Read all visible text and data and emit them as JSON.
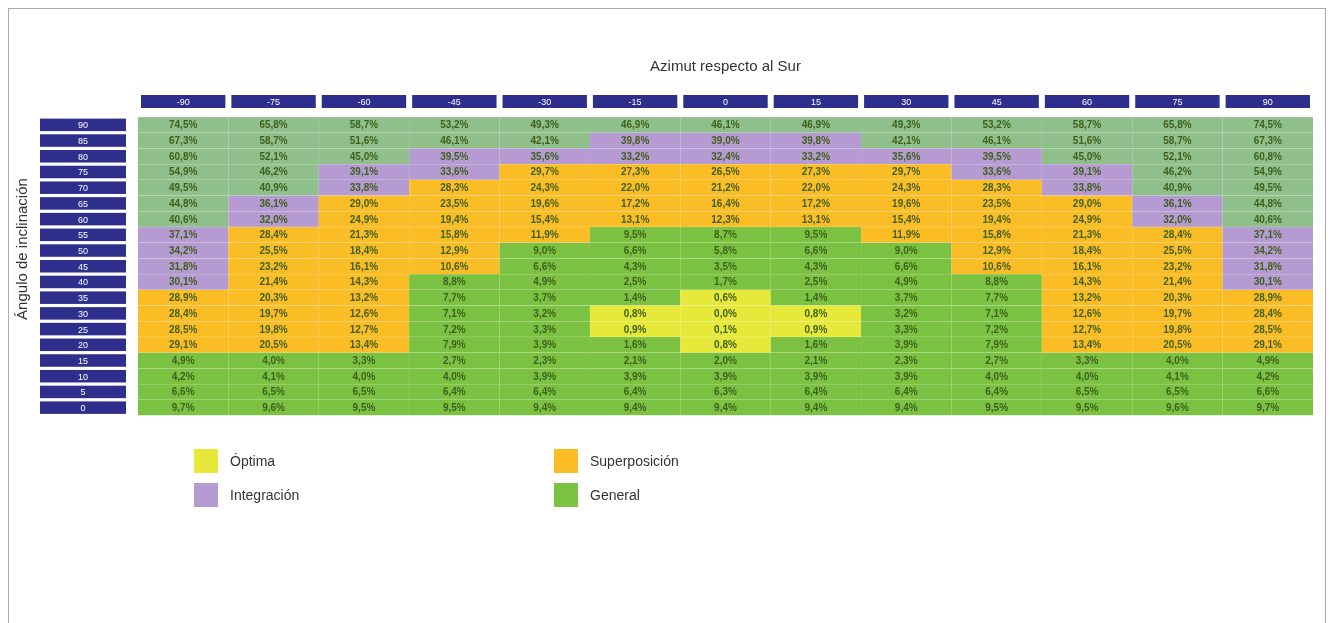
{
  "chart_data": {
    "type": "heatmap",
    "xlabel": "Azimut respecto al Sur",
    "ylabel": "Ángulo de inclinación",
    "categories": [
      "-90",
      "-75",
      "-60",
      "-45",
      "-30",
      "-15",
      "0",
      "15",
      "30",
      "45",
      "60",
      "75",
      "90"
    ],
    "y_categories": [
      "90",
      "85",
      "80",
      "75",
      "70",
      "65",
      "60",
      "55",
      "50",
      "45",
      "40",
      "35",
      "30",
      "25",
      "20",
      "15",
      "10",
      "5",
      "0"
    ],
    "cells": [
      [
        74.5,
        65.8,
        58.7,
        53.2,
        49.3,
        46.9,
        46.1,
        46.9,
        49.3,
        53.2,
        58.7,
        65.8,
        74.5
      ],
      [
        67.3,
        58.7,
        51.6,
        46.1,
        42.1,
        39.8,
        39.0,
        39.8,
        42.1,
        46.1,
        51.6,
        58.7,
        67.3
      ],
      [
        60.8,
        52.1,
        45.0,
        39.5,
        35.6,
        33.2,
        32.4,
        33.2,
        35.6,
        39.5,
        45.0,
        52.1,
        60.8
      ],
      [
        54.9,
        46.2,
        39.1,
        33.6,
        29.7,
        27.3,
        26.5,
        27.3,
        29.7,
        33.6,
        39.1,
        46.2,
        54.9
      ],
      [
        49.5,
        40.9,
        33.8,
        28.3,
        24.3,
        22.0,
        21.2,
        22.0,
        24.3,
        28.3,
        33.8,
        40.9,
        49.5
      ],
      [
        44.8,
        36.1,
        29.0,
        23.5,
        19.6,
        17.2,
        16.4,
        17.2,
        19.6,
        23.5,
        29.0,
        36.1,
        44.8
      ],
      [
        40.6,
        32.0,
        24.9,
        19.4,
        15.4,
        13.1,
        12.3,
        13.1,
        15.4,
        19.4,
        24.9,
        32.0,
        40.6
      ],
      [
        37.1,
        28.4,
        21.3,
        15.8,
        11.9,
        9.5,
        8.7,
        9.5,
        11.9,
        15.8,
        21.3,
        28.4,
        37.1
      ],
      [
        34.2,
        25.5,
        18.4,
        12.9,
        9.0,
        6.6,
        5.8,
        6.6,
        9.0,
        12.9,
        18.4,
        25.5,
        34.2
      ],
      [
        31.8,
        23.2,
        16.1,
        10.6,
        6.6,
        4.3,
        3.5,
        4.3,
        6.6,
        10.6,
        16.1,
        23.2,
        31.8
      ],
      [
        30.1,
        21.4,
        14.3,
        8.8,
        4.9,
        2.5,
        1.7,
        2.5,
        4.9,
        8.8,
        14.3,
        21.4,
        30.1
      ],
      [
        28.9,
        20.3,
        13.2,
        7.7,
        3.7,
        1.4,
        0.6,
        1.4,
        3.7,
        7.7,
        13.2,
        20.3,
        28.9
      ],
      [
        28.4,
        19.7,
        12.6,
        7.1,
        3.2,
        0.8,
        0.0,
        0.8,
        3.2,
        7.1,
        12.6,
        19.7,
        28.4
      ],
      [
        28.5,
        19.8,
        12.7,
        7.2,
        3.3,
        0.9,
        0.1,
        0.9,
        3.3,
        7.2,
        12.7,
        19.8,
        28.5
      ],
      [
        29.1,
        20.5,
        13.4,
        7.9,
        3.9,
        1.6,
        0.8,
        1.6,
        3.9,
        7.9,
        13.4,
        20.5,
        29.1
      ],
      [
        4.9,
        4.0,
        3.3,
        2.7,
        2.3,
        2.1,
        2.0,
        2.1,
        2.3,
        2.7,
        3.3,
        4.0,
        4.9
      ],
      [
        4.2,
        4.1,
        4.0,
        4.0,
        3.9,
        3.9,
        3.9,
        3.9,
        3.9,
        4.0,
        4.0,
        4.1,
        4.2
      ],
      [
        6.6,
        6.5,
        6.5,
        6.4,
        6.4,
        6.4,
        6.3,
        6.4,
        6.4,
        6.4,
        6.5,
        6.5,
        6.6
      ],
      [
        9.7,
        9.6,
        9.5,
        9.5,
        9.4,
        9.4,
        9.4,
        9.4,
        9.4,
        9.5,
        9.5,
        9.6,
        9.7
      ]
    ],
    "cell_labels": [
      [
        "74,5%",
        "65,8%",
        "58,7%",
        "53,2%",
        "49,3%",
        "46,9%",
        "46,1%",
        "46,9%",
        "49,3%",
        "53,2%",
        "58,7%",
        "65,8%",
        "74,5%"
      ],
      [
        "67,3%",
        "58,7%",
        "51,6%",
        "46,1%",
        "42,1%",
        "39,8%",
        "39,0%",
        "39,8%",
        "42,1%",
        "46,1%",
        "51,6%",
        "58,7%",
        "67,3%"
      ],
      [
        "60,8%",
        "52,1%",
        "45,0%",
        "39,5%",
        "35,6%",
        "33,2%",
        "32,4%",
        "33,2%",
        "35,6%",
        "39,5%",
        "45,0%",
        "52,1%",
        "60,8%"
      ],
      [
        "54,9%",
        "46,2%",
        "39,1%",
        "33,6%",
        "29,7%",
        "27,3%",
        "26,5%",
        "27,3%",
        "29,7%",
        "33,6%",
        "39,1%",
        "46,2%",
        "54,9%"
      ],
      [
        "49,5%",
        "40,9%",
        "33,8%",
        "28,3%",
        "24,3%",
        "22,0%",
        "21,2%",
        "22,0%",
        "24,3%",
        "28,3%",
        "33,8%",
        "40,9%",
        "49,5%"
      ],
      [
        "44,8%",
        "36,1%",
        "29,0%",
        "23,5%",
        "19,6%",
        "17,2%",
        "16,4%",
        "17,2%",
        "19,6%",
        "23,5%",
        "29,0%",
        "36,1%",
        "44,8%"
      ],
      [
        "40,6%",
        "32,0%",
        "24,9%",
        "19,4%",
        "15,4%",
        "13,1%",
        "12,3%",
        "13,1%",
        "15,4%",
        "19,4%",
        "24,9%",
        "32,0%",
        "40,6%"
      ],
      [
        "37,1%",
        "28,4%",
        "21,3%",
        "15,8%",
        "11,9%",
        "9,5%",
        "8,7%",
        "9,5%",
        "11,9%",
        "15,8%",
        "21,3%",
        "28,4%",
        "37,1%"
      ],
      [
        "34,2%",
        "25,5%",
        "18,4%",
        "12,9%",
        "9,0%",
        "6,6%",
        "5,8%",
        "6,6%",
        "9,0%",
        "12,9%",
        "18,4%",
        "25,5%",
        "34,2%"
      ],
      [
        "31,8%",
        "23,2%",
        "16,1%",
        "10,6%",
        "6,6%",
        "4,3%",
        "3,5%",
        "4,3%",
        "6,6%",
        "10,6%",
        "16,1%",
        "23,2%",
        "31,8%"
      ],
      [
        "30,1%",
        "21,4%",
        "14,3%",
        "8,8%",
        "4,9%",
        "2,5%",
        "1,7%",
        "2,5%",
        "4,9%",
        "8,8%",
        "14,3%",
        "21,4%",
        "30,1%"
      ],
      [
        "28,9%",
        "20,3%",
        "13,2%",
        "7,7%",
        "3,7%",
        "1,4%",
        "0,6%",
        "1,4%",
        "3,7%",
        "7,7%",
        "13,2%",
        "20,3%",
        "28,9%"
      ],
      [
        "28,4%",
        "19,7%",
        "12,6%",
        "7,1%",
        "3,2%",
        "0,8%",
        "0,0%",
        "0,8%",
        "3,2%",
        "7,1%",
        "12,6%",
        "19,7%",
        "28,4%"
      ],
      [
        "28,5%",
        "19,8%",
        "12,7%",
        "7,2%",
        "3,3%",
        "0,9%",
        "0,1%",
        "0,9%",
        "3,3%",
        "7,2%",
        "12,7%",
        "19,8%",
        "28,5%"
      ],
      [
        "29,1%",
        "20,5%",
        "13,4%",
        "7,9%",
        "3,9%",
        "1,6%",
        "0,8%",
        "1,6%",
        "3,9%",
        "7,9%",
        "13,4%",
        "20,5%",
        "29,1%"
      ],
      [
        "4,9%",
        "4,0%",
        "3,3%",
        "2,7%",
        "2,3%",
        "2,1%",
        "2,0%",
        "2,1%",
        "2,3%",
        "2,7%",
        "3,3%",
        "4,0%",
        "4,9%"
      ],
      [
        "4,2%",
        "4,1%",
        "4,0%",
        "4,0%",
        "3,9%",
        "3,9%",
        "3,9%",
        "3,9%",
        "3,9%",
        "4,0%",
        "4,0%",
        "4,1%",
        "4,2%"
      ],
      [
        "6,6%",
        "6,5%",
        "6,5%",
        "6,4%",
        "6,4%",
        "6,4%",
        "6,3%",
        "6,4%",
        "6,4%",
        "6,4%",
        "6,5%",
        "6,5%",
        "6,6%"
      ],
      [
        "9,7%",
        "9,6%",
        "9,5%",
        "9,5%",
        "9,4%",
        "9,4%",
        "9,4%",
        "9,4%",
        "9,4%",
        "9,5%",
        "9,5%",
        "9,6%",
        "9,7%"
      ]
    ],
    "colors": [
      [
        "#8fbf8a",
        "#8fbf8a",
        "#8fbf8a",
        "#8fbf8a",
        "#8fbf8a",
        "#8fbf8a",
        "#8fbf8a",
        "#8fbf8a",
        "#8fbf8a",
        "#8fbf8a",
        "#8fbf8a",
        "#8fbf8a",
        "#8fbf8a"
      ],
      [
        "#8fbf8a",
        "#8fbf8a",
        "#8fbf8a",
        "#8fbf8a",
        "#8fbf8a",
        "#b59bd2",
        "#b59bd2",
        "#b59bd2",
        "#8fbf8a",
        "#8fbf8a",
        "#8fbf8a",
        "#8fbf8a",
        "#8fbf8a"
      ],
      [
        "#8fbf8a",
        "#8fbf8a",
        "#8fbf8a",
        "#b59bd2",
        "#b59bd2",
        "#b59bd2",
        "#b59bd2",
        "#b59bd2",
        "#b59bd2",
        "#b59bd2",
        "#8fbf8a",
        "#8fbf8a",
        "#8fbf8a"
      ],
      [
        "#8fbf8a",
        "#8fbf8a",
        "#b59bd2",
        "#b59bd2",
        "#fbbd26",
        "#fbbd26",
        "#fbbd26",
        "#fbbd26",
        "#fbbd26",
        "#b59bd2",
        "#b59bd2",
        "#8fbf8a",
        "#8fbf8a"
      ],
      [
        "#8fbf8a",
        "#8fbf8a",
        "#b59bd2",
        "#fbbd26",
        "#fbbd26",
        "#fbbd26",
        "#fbbd26",
        "#fbbd26",
        "#fbbd26",
        "#fbbd26",
        "#b59bd2",
        "#8fbf8a",
        "#8fbf8a"
      ],
      [
        "#8fbf8a",
        "#b59bd2",
        "#fbbd26",
        "#fbbd26",
        "#fbbd26",
        "#fbbd26",
        "#fbbd26",
        "#fbbd26",
        "#fbbd26",
        "#fbbd26",
        "#fbbd26",
        "#b59bd2",
        "#8fbf8a"
      ],
      [
        "#8fbf8a",
        "#b59bd2",
        "#fbbd26",
        "#fbbd26",
        "#fbbd26",
        "#fbbd26",
        "#fbbd26",
        "#fbbd26",
        "#fbbd26",
        "#fbbd26",
        "#fbbd26",
        "#b59bd2",
        "#8fbf8a"
      ],
      [
        "#b59bd2",
        "#fbbd26",
        "#fbbd26",
        "#fbbd26",
        "#fbbd26",
        "#7cc242",
        "#7cc242",
        "#7cc242",
        "#fbbd26",
        "#fbbd26",
        "#fbbd26",
        "#fbbd26",
        "#b59bd2"
      ],
      [
        "#b59bd2",
        "#fbbd26",
        "#fbbd26",
        "#fbbd26",
        "#7cc242",
        "#7cc242",
        "#7cc242",
        "#7cc242",
        "#7cc242",
        "#fbbd26",
        "#fbbd26",
        "#fbbd26",
        "#b59bd2"
      ],
      [
        "#b59bd2",
        "#fbbd26",
        "#fbbd26",
        "#fbbd26",
        "#7cc242",
        "#7cc242",
        "#7cc242",
        "#7cc242",
        "#7cc242",
        "#fbbd26",
        "#fbbd26",
        "#fbbd26",
        "#b59bd2"
      ],
      [
        "#b59bd2",
        "#fbbd26",
        "#fbbd26",
        "#7cc242",
        "#7cc242",
        "#7cc242",
        "#7cc242",
        "#7cc242",
        "#7cc242",
        "#7cc242",
        "#fbbd26",
        "#fbbd26",
        "#b59bd2"
      ],
      [
        "#fbbd26",
        "#fbbd26",
        "#fbbd26",
        "#7cc242",
        "#7cc242",
        "#7cc242",
        "#e6e83a",
        "#7cc242",
        "#7cc242",
        "#7cc242",
        "#fbbd26",
        "#fbbd26",
        "#fbbd26"
      ],
      [
        "#fbbd26",
        "#fbbd26",
        "#fbbd26",
        "#7cc242",
        "#7cc242",
        "#e6e83a",
        "#e6e83a",
        "#e6e83a",
        "#7cc242",
        "#7cc242",
        "#fbbd26",
        "#fbbd26",
        "#fbbd26"
      ],
      [
        "#fbbd26",
        "#fbbd26",
        "#fbbd26",
        "#7cc242",
        "#7cc242",
        "#e6e83a",
        "#e6e83a",
        "#e6e83a",
        "#7cc242",
        "#7cc242",
        "#fbbd26",
        "#fbbd26",
        "#fbbd26"
      ],
      [
        "#fbbd26",
        "#fbbd26",
        "#fbbd26",
        "#7cc242",
        "#7cc242",
        "#7cc242",
        "#e6e83a",
        "#7cc242",
        "#7cc242",
        "#7cc242",
        "#fbbd26",
        "#fbbd26",
        "#fbbd26"
      ],
      [
        "#7cc242",
        "#7cc242",
        "#7cc242",
        "#7cc242",
        "#7cc242",
        "#7cc242",
        "#7cc242",
        "#7cc242",
        "#7cc242",
        "#7cc242",
        "#7cc242",
        "#7cc242",
        "#7cc242"
      ],
      [
        "#7cc242",
        "#7cc242",
        "#7cc242",
        "#7cc242",
        "#7cc242",
        "#7cc242",
        "#7cc242",
        "#7cc242",
        "#7cc242",
        "#7cc242",
        "#7cc242",
        "#7cc242",
        "#7cc242"
      ],
      [
        "#7cc242",
        "#7cc242",
        "#7cc242",
        "#7cc242",
        "#7cc242",
        "#7cc242",
        "#7cc242",
        "#7cc242",
        "#7cc242",
        "#7cc242",
        "#7cc242",
        "#7cc242",
        "#7cc242"
      ],
      [
        "#7cc242",
        "#7cc242",
        "#7cc242",
        "#7cc242",
        "#7cc242",
        "#7cc242",
        "#7cc242",
        "#7cc242",
        "#7cc242",
        "#7cc242",
        "#7cc242",
        "#7cc242",
        "#7cc242"
      ]
    ],
    "series": [
      {
        "name": "Óptima",
        "color": "#e6e83a",
        "values": [
          null,
          null,
          null,
          null,
          null,
          null,
          null,
          null,
          null,
          null,
          null,
          null,
          null
        ]
      },
      {
        "name": "Superposición",
        "color": "#fbbd26",
        "values": [
          null,
          null,
          null,
          null,
          null,
          null,
          null,
          null,
          null,
          null,
          null,
          null,
          null
        ]
      },
      {
        "name": "Integración",
        "color": "#b59bd2",
        "values": [
          null,
          null,
          null,
          null,
          null,
          null,
          null,
          null,
          null,
          null,
          null,
          null,
          null
        ]
      },
      {
        "name": "General",
        "color": "#7cc242",
        "values": [
          null,
          null,
          null,
          null,
          null,
          null,
          null,
          null,
          null,
          null,
          null,
          null,
          null
        ]
      }
    ],
    "legend": "bottom"
  }
}
